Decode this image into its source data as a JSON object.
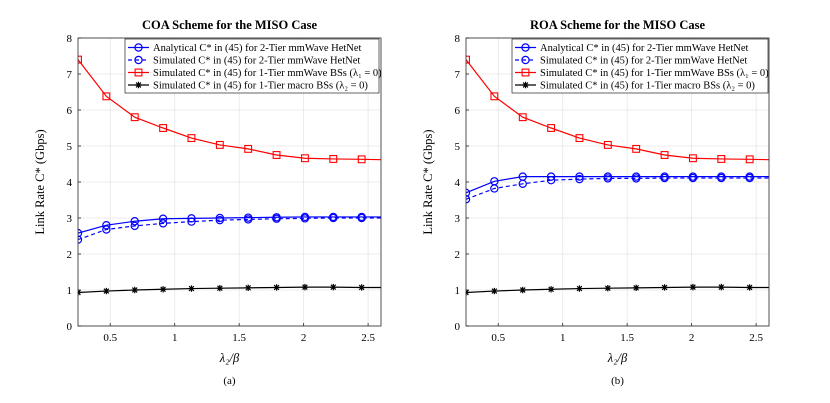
{
  "chart_data": [
    {
      "type": "line",
      "title": "COA Scheme for the MISO Case",
      "xlabel": "λ₂/β",
      "ylabel": "Link Rate C* (Gbps)",
      "xlim": [
        0.25,
        2.6
      ],
      "ylim": [
        0,
        8
      ],
      "xticks": [
        0.5,
        1,
        1.5,
        2,
        2.5
      ],
      "xtick_labels": [
        "0.5",
        "1",
        "1.5",
        "2",
        "2.5"
      ],
      "yticks": [
        0,
        1,
        2,
        3,
        4,
        5,
        6,
        7,
        8
      ],
      "ytick_labels": [
        "0",
        "1",
        "2",
        "3",
        "4",
        "5",
        "6",
        "7",
        "8"
      ],
      "grid": true,
      "legend_position": "top-right",
      "caption": "(a)",
      "series": [
        {
          "name": "Analytical C* in (45) for 2-Tier mmWave HetNet",
          "color": "#0000ff",
          "dash": "solid",
          "marker": "circle",
          "x": [
            0.25,
            0.47,
            0.69,
            0.91,
            1.13,
            1.35,
            1.57,
            1.79,
            2.01,
            2.23,
            2.45,
            2.6
          ],
          "y": [
            2.58,
            2.8,
            2.91,
            2.98,
            2.99,
            3.0,
            3.01,
            3.02,
            3.03,
            3.03,
            3.03,
            3.03
          ]
        },
        {
          "name": "Simulated C* in (45) for 2-Tier mmWave HetNet",
          "color": "#0000ff",
          "dash": "dashed",
          "marker": "circle",
          "x": [
            0.25,
            0.47,
            0.69,
            0.91,
            1.13,
            1.35,
            1.57,
            1.79,
            2.01,
            2.23,
            2.45,
            2.6
          ],
          "y": [
            2.4,
            2.68,
            2.78,
            2.85,
            2.9,
            2.94,
            2.96,
            2.98,
            2.99,
            3.0,
            3.0,
            3.0
          ]
        },
        {
          "name": "Simulated C* in (45) for 1-Tier mmWave BSs (λ₁ = 0)",
          "color": "#ff0000",
          "dash": "solid",
          "marker": "square",
          "x": [
            0.25,
            0.47,
            0.69,
            0.91,
            1.13,
            1.35,
            1.57,
            1.79,
            2.01,
            2.23,
            2.45,
            2.6
          ],
          "y": [
            7.4,
            6.38,
            5.8,
            5.5,
            5.22,
            5.03,
            4.92,
            4.75,
            4.66,
            4.64,
            4.63,
            4.62
          ]
        },
        {
          "name": "Simulated C* in (45) for 1-Tier macro BSs (λ₂ = 0)",
          "color": "#000000",
          "dash": "solid",
          "marker": "star",
          "x": [
            0.25,
            0.47,
            0.69,
            0.91,
            1.13,
            1.35,
            1.57,
            1.79,
            2.01,
            2.23,
            2.45,
            2.6
          ],
          "y": [
            0.93,
            0.97,
            1.0,
            1.02,
            1.04,
            1.05,
            1.06,
            1.07,
            1.08,
            1.08,
            1.07,
            1.07
          ]
        }
      ]
    },
    {
      "type": "line",
      "title": "ROA Scheme for the MISO Case",
      "xlabel": "λ₂/β",
      "ylabel": "Link Rate C* (Gbps)",
      "xlim": [
        0.25,
        2.6
      ],
      "ylim": [
        0,
        8
      ],
      "xticks": [
        0.5,
        1,
        1.5,
        2,
        2.5
      ],
      "xtick_labels": [
        "0.5",
        "1",
        "1.5",
        "2",
        "2.5"
      ],
      "yticks": [
        0,
        1,
        2,
        3,
        4,
        5,
        6,
        7,
        8
      ],
      "ytick_labels": [
        "0",
        "1",
        "2",
        "3",
        "4",
        "5",
        "6",
        "7",
        "8"
      ],
      "grid": true,
      "legend_position": "top-right",
      "caption": "(b)",
      "series": [
        {
          "name": "Analytical C* in (45) for 2-Tier mmWave HetNet",
          "color": "#0000ff",
          "dash": "solid",
          "marker": "circle",
          "x": [
            0.25,
            0.47,
            0.69,
            0.91,
            1.13,
            1.35,
            1.57,
            1.79,
            2.01,
            2.23,
            2.45,
            2.6
          ],
          "y": [
            3.7,
            4.02,
            4.15,
            4.15,
            4.15,
            4.15,
            4.15,
            4.15,
            4.15,
            4.15,
            4.15,
            4.15
          ]
        },
        {
          "name": "Simulated C* in (45) for 2-Tier mmWave HetNet",
          "color": "#0000ff",
          "dash": "dashed",
          "marker": "circle",
          "x": [
            0.25,
            0.47,
            0.69,
            0.91,
            1.13,
            1.35,
            1.57,
            1.79,
            2.01,
            2.23,
            2.45,
            2.6
          ],
          "y": [
            3.52,
            3.82,
            3.95,
            4.05,
            4.08,
            4.1,
            4.1,
            4.11,
            4.11,
            4.11,
            4.11,
            4.11
          ]
        },
        {
          "name": "Simulated C* in (45) for 1-Tier mmWave BSs (λ₁ = 0)",
          "color": "#ff0000",
          "dash": "solid",
          "marker": "square",
          "x": [
            0.25,
            0.47,
            0.69,
            0.91,
            1.13,
            1.35,
            1.57,
            1.79,
            2.01,
            2.23,
            2.45,
            2.6
          ],
          "y": [
            7.4,
            6.38,
            5.8,
            5.5,
            5.22,
            5.03,
            4.92,
            4.75,
            4.66,
            4.64,
            4.63,
            4.62
          ]
        },
        {
          "name": "Simulated C* in (45) for 1-Tier macro BSs (λ₂ = 0)",
          "color": "#000000",
          "dash": "solid",
          "marker": "star",
          "x": [
            0.25,
            0.47,
            0.69,
            0.91,
            1.13,
            1.35,
            1.57,
            1.79,
            2.01,
            2.23,
            2.45,
            2.6
          ],
          "y": [
            0.93,
            0.97,
            1.0,
            1.02,
            1.04,
            1.05,
            1.06,
            1.07,
            1.08,
            1.08,
            1.07,
            1.07
          ]
        }
      ]
    }
  ]
}
